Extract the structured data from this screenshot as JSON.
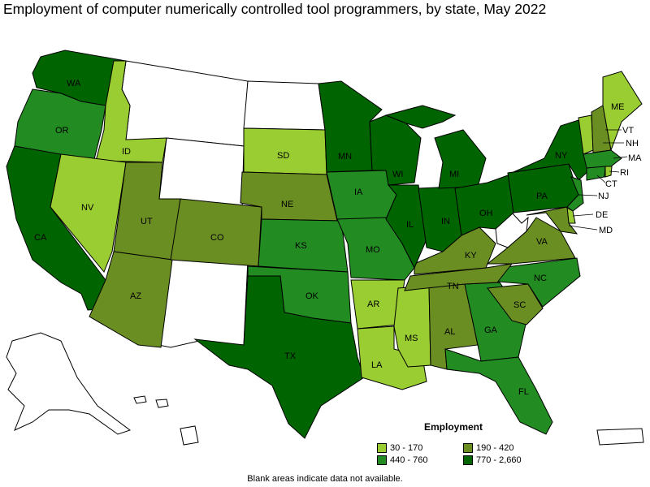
{
  "title": "Employment of computer numerically controlled tool programmers, by state, May 2022",
  "legend": {
    "title": "Employment",
    "items": [
      {
        "range": "30 - 170",
        "color": "#9acd32"
      },
      {
        "range": "440 - 760",
        "color": "#228b22"
      },
      {
        "range": "190 - 420",
        "color": "#6b8e23"
      },
      {
        "range": "770 - 2,660",
        "color": "#006400"
      }
    ]
  },
  "footnote": "Blank areas indicate data not available.",
  "state_labels": {
    "WA": "WA",
    "OR": "OR",
    "CA": "CA",
    "ID": "ID",
    "NV": "NV",
    "UT": "UT",
    "AZ": "AZ",
    "CO": "CO",
    "NE": "NE",
    "SD": "SD",
    "KS": "KS",
    "OK": "OK",
    "TX": "TX",
    "IA": "IA",
    "MO": "MO",
    "AR": "AR",
    "LA": "LA",
    "MS": "MS",
    "AL": "AL",
    "GA": "GA",
    "FL": "FL",
    "SC": "SC",
    "NC": "NC",
    "TN": "TN",
    "KY": "KY",
    "VA": "VA",
    "MN": "MN",
    "WI": "WI",
    "IL": "IL",
    "IN": "IN",
    "MI": "MI",
    "OH": "OH",
    "PA": "PA",
    "NY": "NY",
    "ME": "ME",
    "VT": "VT",
    "NH": "NH",
    "MA": "MA",
    "RI": "RI",
    "CT": "CT",
    "NJ": "NJ",
    "DE": "DE",
    "MD": "MD"
  },
  "state_values": {
    "WA": "770 - 2,660",
    "OR": "440 - 760",
    "CA": "770 - 2,660",
    "ID": "30 - 170",
    "NV": "30 - 170",
    "UT": "190 - 420",
    "AZ": "190 - 420",
    "CO": "190 - 420",
    "NE": "190 - 420",
    "SD": "30 - 170",
    "KS": "440 - 760",
    "OK": "440 - 760",
    "TX": "770 - 2,660",
    "IA": "440 - 760",
    "MO": "440 - 760",
    "AR": "30 - 170",
    "LA": "30 - 170",
    "MS": "30 - 170",
    "AL": "190 - 420",
    "GA": "440 - 760",
    "FL": "440 - 760",
    "SC": "190 - 420",
    "NC": "440 - 760",
    "TN": "190 - 420",
    "KY": "190 - 420",
    "VA": "190 - 420",
    "MN": "770 - 2,660",
    "WI": "770 - 2,660",
    "IL": "770 - 2,660",
    "IN": "770 - 2,660",
    "MI": "770 - 2,660",
    "OH": "770 - 2,660",
    "PA": "770 - 2,660",
    "NY": "770 - 2,660",
    "ME": "30 - 170",
    "VT": "30 - 170",
    "NH": "190 - 420",
    "MA": "440 - 760",
    "RI": "30 - 170",
    "CT": "440 - 760",
    "NJ": "440 - 760",
    "DE": "30 - 170",
    "MD": "190 - 420"
  },
  "colors": {
    "30 - 170": "#9acd32",
    "190 - 420": "#6b8e23",
    "440 - 760": "#228b22",
    "770 - 2,660": "#006400",
    "blank": "#ffffff"
  }
}
